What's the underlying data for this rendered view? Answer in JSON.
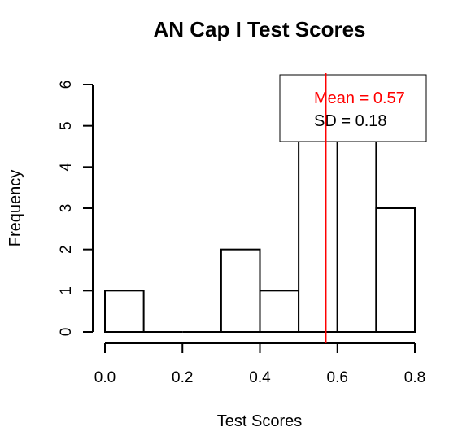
{
  "chart_data": {
    "type": "bar",
    "title": "AN Cap I Test Scores",
    "xlabel": "Test Scores",
    "ylabel": "Frequency",
    "bins": [
      {
        "start": 0.0,
        "end": 0.1,
        "count": 1
      },
      {
        "start": 0.1,
        "end": 0.2,
        "count": 0
      },
      {
        "start": 0.2,
        "end": 0.3,
        "count": 0
      },
      {
        "start": 0.3,
        "end": 0.4,
        "count": 2
      },
      {
        "start": 0.4,
        "end": 0.5,
        "count": 1
      },
      {
        "start": 0.5,
        "end": 0.6,
        "count": 5
      },
      {
        "start": 0.6,
        "end": 0.7,
        "count": 5
      },
      {
        "start": 0.7,
        "end": 0.8,
        "count": 3
      }
    ],
    "xlim": [
      0.0,
      0.8
    ],
    "ylim": [
      0,
      6
    ],
    "xticks": [
      "0.0",
      "0.2",
      "0.4",
      "0.6",
      "0.8"
    ],
    "yticks": [
      "0",
      "1",
      "2",
      "3",
      "4",
      "5",
      "6"
    ],
    "mean_line": {
      "value": 0.57,
      "color": "#ff0000"
    },
    "legend": {
      "placement": "top-right",
      "mean_text": "Mean = 0.57",
      "sd_text": "SD = 0.18",
      "mean_color": "#ff0000",
      "sd_color": "#000000"
    },
    "grid": false,
    "bar_fill": "#ffffff",
    "bar_stroke": "#000000"
  }
}
